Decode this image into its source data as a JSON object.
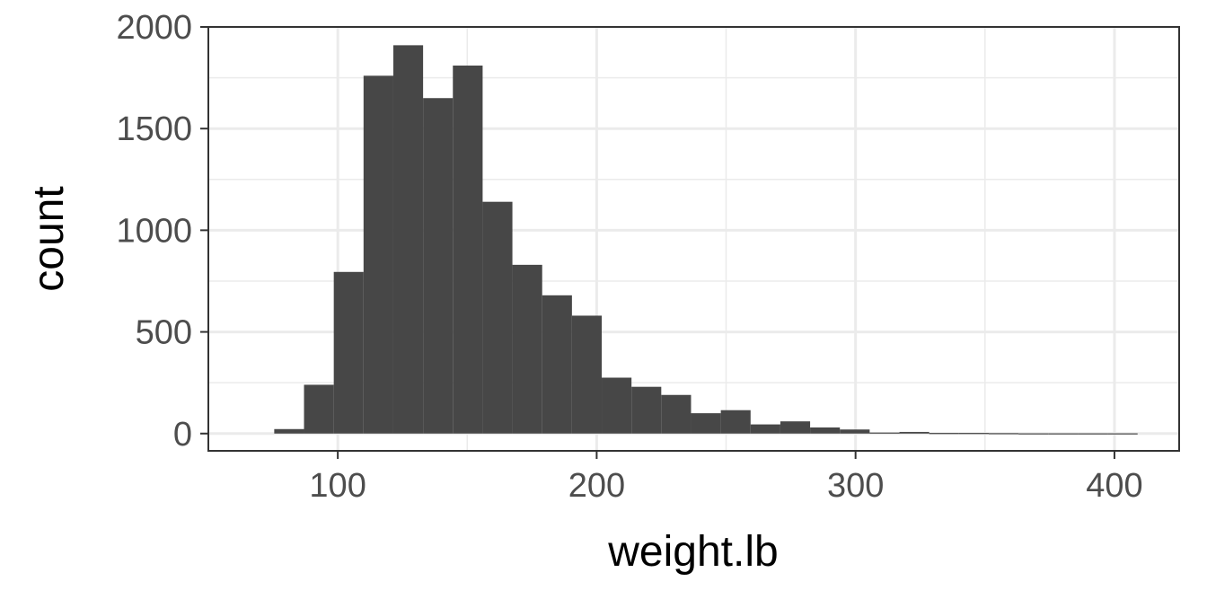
{
  "chart_data": {
    "type": "bar",
    "title": "",
    "xlabel": "weight.lb",
    "ylabel": "count",
    "x_ticks": [
      100,
      200,
      300,
      400
    ],
    "y_ticks": [
      0,
      500,
      1000,
      1500,
      2000
    ],
    "xlim": [
      50,
      425
    ],
    "ylim": [
      -85,
      2000
    ],
    "grid": true,
    "bin_width": 11.5,
    "bin_centers": [
      81.2,
      92.7,
      104.2,
      115.7,
      127.2,
      138.7,
      150.2,
      161.7,
      173.2,
      184.7,
      196.2,
      207.7,
      219.2,
      230.7,
      242.2,
      253.7,
      265.2,
      276.7,
      288.2,
      299.7,
      311.2,
      322.7,
      334.2,
      345.7,
      357.2,
      368.7,
      380.2,
      391.7,
      403.2
    ],
    "values": [
      22,
      240,
      795,
      1760,
      1910,
      1650,
      1810,
      1140,
      830,
      680,
      580,
      275,
      230,
      190,
      100,
      115,
      45,
      60,
      30,
      20,
      5,
      8,
      3,
      3,
      2,
      1,
      1,
      1,
      1
    ],
    "bar_color": "#474747"
  }
}
